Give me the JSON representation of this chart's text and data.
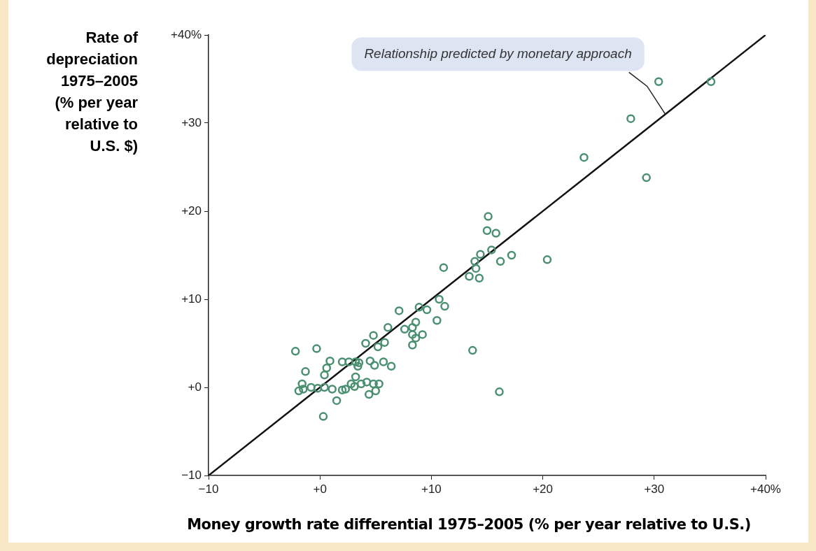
{
  "chart_data": {
    "type": "scatter",
    "xlabel": "Money growth rate differential 1975–2005 (% per year relative to U.S.)",
    "ylabel": "Rate of depreciation 1975–2005 (% per year relative to U.S. $)",
    "xlim": [
      -10,
      40
    ],
    "ylim": [
      -10,
      40
    ],
    "xticks": [
      {
        "value": -10,
        "label": "−10"
      },
      {
        "value": 0,
        "label": "+0"
      },
      {
        "value": 10,
        "label": "+10"
      },
      {
        "value": 20,
        "label": "+20"
      },
      {
        "value": 30,
        "label": "+30"
      },
      {
        "value": 40,
        "label": "+40%"
      }
    ],
    "yticks": [
      {
        "value": -10,
        "label": "−10"
      },
      {
        "value": 0,
        "label": "+0"
      },
      {
        "value": 10,
        "label": "+10"
      },
      {
        "value": 20,
        "label": "+20"
      },
      {
        "value": 30,
        "label": "+30"
      },
      {
        "value": 40,
        "label": "+40%"
      }
    ],
    "grid": false,
    "legend": false,
    "marker": "circle",
    "annotations": [
      {
        "text": "Relationship predicted by monetary approach",
        "x": 31,
        "y": 31
      }
    ],
    "series": [
      {
        "color": "#4a9070",
        "x": [
          -2.2,
          -0.3,
          0.9,
          0.6,
          0.4,
          -1.3,
          -1.6,
          -1.9,
          -1.5,
          -0.8,
          -0.2,
          0.4,
          1.1,
          1.5,
          0.3,
          2.0,
          2.6,
          3.2,
          3.5,
          3.4,
          2.0,
          2.3,
          2.8,
          3.2,
          3.1,
          3.7,
          4.2,
          4.8,
          5.3,
          5.0,
          4.4,
          4.5,
          4.9,
          5.7,
          6.4,
          4.1,
          4.8,
          5.2,
          5.8,
          6.1,
          7.1,
          7.6,
          8.3,
          8.6,
          8.3,
          8.6,
          8.3,
          9.2,
          8.9,
          9.6,
          10.7,
          11.2,
          10.5,
          11.1,
          13.7,
          16.1,
          13.4,
          14.3,
          14.0,
          14.4,
          13.9,
          15.4,
          16.2,
          17.2,
          15.1,
          15.0,
          15.8,
          20.4,
          23.7,
          27.9,
          29.3,
          30.4,
          35.1
        ],
        "values": [
          4.1,
          4.4,
          3.0,
          2.2,
          1.4,
          1.8,
          0.4,
          -0.4,
          -0.2,
          0,
          -0.1,
          0,
          -0.2,
          -1.5,
          -3.3,
          2.9,
          2.9,
          2.9,
          2.8,
          2.4,
          -0.3,
          -0.2,
          0.4,
          1.2,
          0.1,
          0.4,
          0.6,
          0.4,
          0.4,
          -0.4,
          -0.8,
          3.0,
          2.5,
          2.9,
          2.4,
          5.0,
          5.9,
          4.6,
          5.1,
          6.8,
          8.7,
          6.6,
          6.8,
          7.4,
          6.0,
          5.6,
          4.8,
          6.0,
          9.1,
          8.8,
          10.0,
          9.2,
          7.6,
          13.6,
          4.2,
          -0.5,
          12.6,
          12.4,
          13.5,
          15.1,
          14.3,
          15.6,
          14.3,
          15.0,
          19.4,
          17.8,
          17.5,
          14.5,
          26.1,
          30.5,
          23.8,
          34.7,
          34.7
        ]
      },
      {
        "type": "line",
        "color": "#111111",
        "marker": "none",
        "line_style": "solid",
        "x": [
          -10,
          40
        ],
        "values": [
          -10,
          40
        ]
      }
    ]
  }
}
